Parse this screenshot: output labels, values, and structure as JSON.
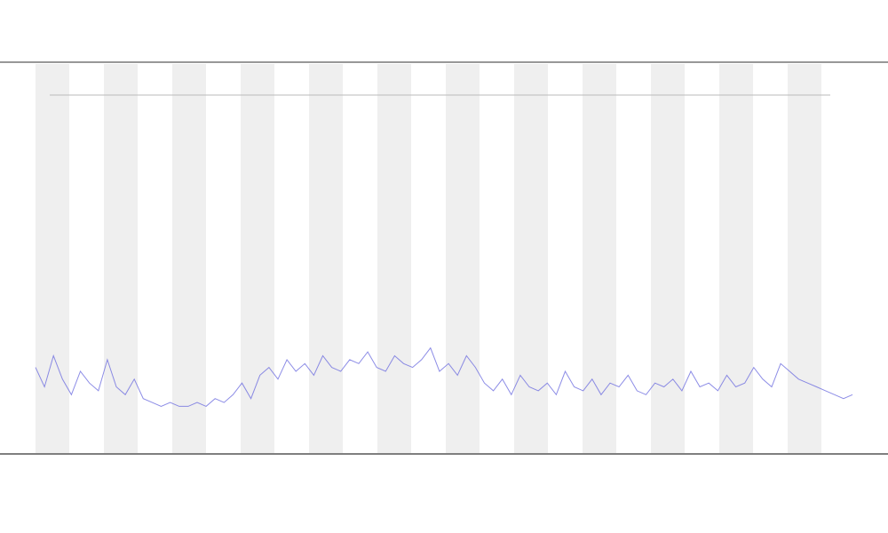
{
  "chart_data": {
    "type": "line",
    "ylim": [
      0,
      100
    ],
    "series": [
      {
        "color": "#6f6fe0",
        "values": [
          22,
          17,
          25,
          19,
          15,
          21,
          18,
          16,
          24,
          17,
          15,
          19,
          14,
          13,
          12,
          13,
          12,
          12,
          13,
          12,
          14,
          13,
          15,
          18,
          14,
          20,
          22,
          19,
          24,
          21,
          23,
          20,
          25,
          22,
          21,
          24,
          23,
          26,
          22,
          21,
          25,
          23,
          22,
          24,
          27,
          21,
          23,
          20,
          25,
          22,
          18,
          16,
          19,
          15,
          20,
          17,
          16,
          18,
          15,
          21,
          17,
          16,
          19,
          15,
          18,
          17,
          20,
          16,
          15,
          18,
          17,
          19,
          16,
          21,
          17,
          18,
          16,
          20,
          17,
          18,
          22,
          19,
          17,
          23,
          21,
          19,
          18,
          17,
          16,
          15,
          14,
          15
        ]
      }
    ]
  }
}
